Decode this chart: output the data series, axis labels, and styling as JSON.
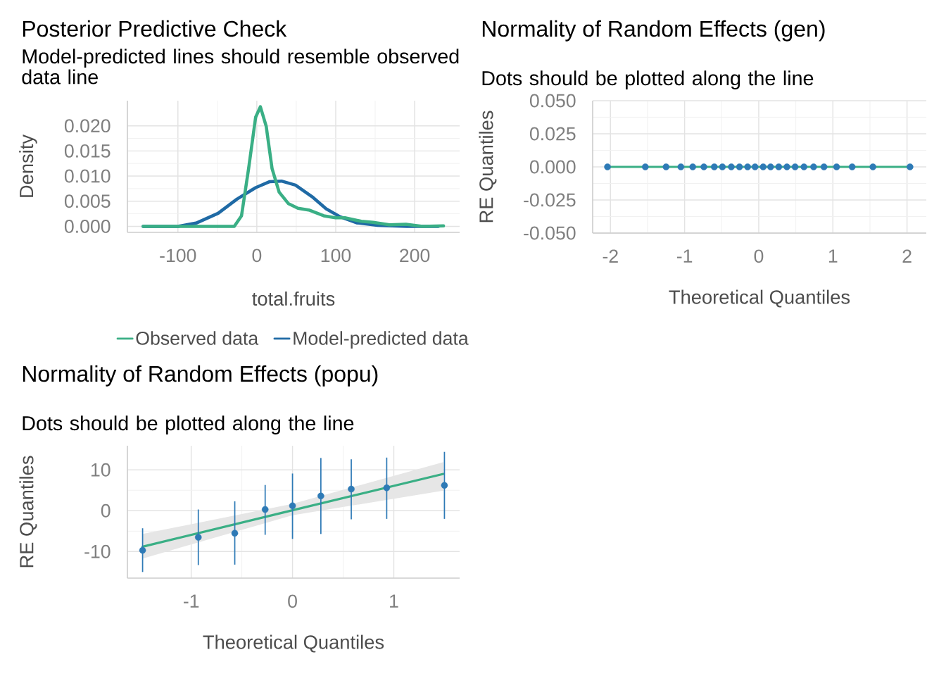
{
  "chart_data": [
    {
      "type": "line",
      "title": "Posterior Predictive Check",
      "subtitle": "Model-predicted lines should resemble observed data line",
      "xlabel": "total.fruits",
      "ylabel": "Density",
      "xlim": [
        -164,
        257
      ],
      "ylim": [
        -0.0012,
        0.025
      ],
      "xticks": [
        -100,
        0,
        100,
        200
      ],
      "yticks": [
        {
          "value": 0,
          "label": "0.000"
        },
        {
          "value": 0.005,
          "label": "0.005"
        },
        {
          "value": 0.01,
          "label": "0.010"
        },
        {
          "value": 0.015,
          "label": "0.015"
        },
        {
          "value": 0.02,
          "label": "0.020"
        }
      ],
      "grid": true,
      "legend": "bottom",
      "series": [
        {
          "name": "Observed data",
          "color": "#3aaf85",
          "x": [
            -144,
            -100,
            -50,
            -28.6,
            -19.4,
            -10.4,
            -1.5,
            4.5,
            11.9,
            19.3,
            28.3,
            40.2,
            52.1,
            67,
            84.8,
            99.7,
            111.6,
            132.4,
            147.3,
            168,
            189,
            210,
            236.6
          ],
          "values": [
            0,
            0,
            0,
            0,
            0.0021,
            0.0115,
            0.0217,
            0.0238,
            0.0199,
            0.0115,
            0.0068,
            0.0045,
            0.0036,
            0.0032,
            0.0021,
            0.0017,
            0.0017,
            0.001,
            0.0008,
            0.0003,
            0.0004,
            0,
            0.0001
          ]
        },
        {
          "name": "Model-predicted data",
          "color": "#1f6aa5",
          "x": [
            -144,
            -100,
            -75.9,
            -49,
            -25.3,
            -1.5,
            16.4,
            31.3,
            49,
            70,
            87.8,
            105.6,
            126.5,
            153,
            190,
            230
          ],
          "values": [
            0,
            0,
            0.0007,
            0.0026,
            0.0054,
            0.0077,
            0.0089,
            0.009,
            0.0082,
            0.0059,
            0.0035,
            0.0019,
            0.0007,
            0.0002,
            0,
            0
          ]
        }
      ]
    },
    {
      "type": "scatter",
      "title": "Normality of Random Effects (gen)",
      "subtitle": "Dots should be plotted along the line",
      "xlabel": "Theoretical Quantiles",
      "ylabel": "RE Quantiles",
      "xlim": [
        -2.24,
        2.26
      ],
      "ylim": [
        -0.05,
        0.05
      ],
      "xticks": [
        -2,
        -1,
        0,
        1,
        2
      ],
      "yticks": [
        {
          "value": -0.05,
          "label": "-0.050"
        },
        {
          "value": -0.025,
          "label": "-0.025"
        },
        {
          "value": 0,
          "label": "0.000"
        },
        {
          "value": 0.025,
          "label": "0.025"
        },
        {
          "value": 0.05,
          "label": "0.050"
        }
      ],
      "grid": true,
      "series": [
        {
          "type": "line",
          "color": "#3aaf85",
          "x": [
            -2.04,
            2.04
          ],
          "values": [
            0,
            0
          ]
        },
        {
          "type": "scatter",
          "marker": "circle",
          "color": "#2e7ab6",
          "x": [
            -2.04,
            -1.53,
            -1.25,
            -1.05,
            -0.89,
            -0.74,
            -0.6,
            -0.49,
            -0.37,
            -0.26,
            -0.15,
            -0.05,
            0.06,
            0.16,
            0.27,
            0.38,
            0.49,
            0.61,
            0.74,
            0.88,
            1.05,
            1.26,
            1.54,
            2.04
          ],
          "values": [
            0,
            0,
            0,
            0,
            0,
            0,
            0,
            0,
            0,
            0,
            0,
            0,
            0,
            0,
            0,
            0,
            0,
            0,
            0,
            0,
            0,
            0,
            0,
            0
          ]
        }
      ]
    },
    {
      "type": "scatter",
      "title": "Normality of Random Effects (popu)",
      "subtitle": "Dots should be plotted along the line",
      "xlabel": "Theoretical Quantiles",
      "ylabel": "RE Quantiles",
      "xlim": [
        -1.63,
        1.65
      ],
      "ylim": [
        -16.5,
        15.9
      ],
      "xticks": [
        -1,
        0,
        1
      ],
      "yticks": [
        -10,
        0,
        10
      ],
      "grid": true,
      "series": [
        {
          "type": "line",
          "color": "#3aaf85",
          "x": [
            -1.48,
            0,
            1.49
          ],
          "values": [
            -8.8,
            0.1,
            9.0
          ],
          "lower": [
            -11.7,
            -1.1,
            4.9
          ],
          "upper": [
            -5.7,
            1.7,
            11.9
          ]
        },
        {
          "type": "scatter",
          "marker": "circle",
          "color": "#2e7ab6",
          "x": [
            -1.48,
            -0.93,
            -0.57,
            -0.27,
            0.0,
            0.28,
            0.58,
            0.93,
            1.5
          ],
          "values": [
            -9.7,
            -6.5,
            -5.5,
            0.3,
            1.2,
            3.6,
            5.3,
            5.6,
            6.2
          ],
          "errors": [
            [
              -15.0,
              -4.3
            ],
            [
              -13.3,
              0.3
            ],
            [
              -13.2,
              2.3
            ],
            [
              -5.9,
              6.3
            ],
            [
              -6.9,
              9.1
            ],
            [
              -5.7,
              12.9
            ],
            [
              -2.1,
              12.6
            ],
            [
              -2.0,
              13.0
            ],
            [
              -2.0,
              14.4
            ]
          ]
        }
      ]
    }
  ]
}
